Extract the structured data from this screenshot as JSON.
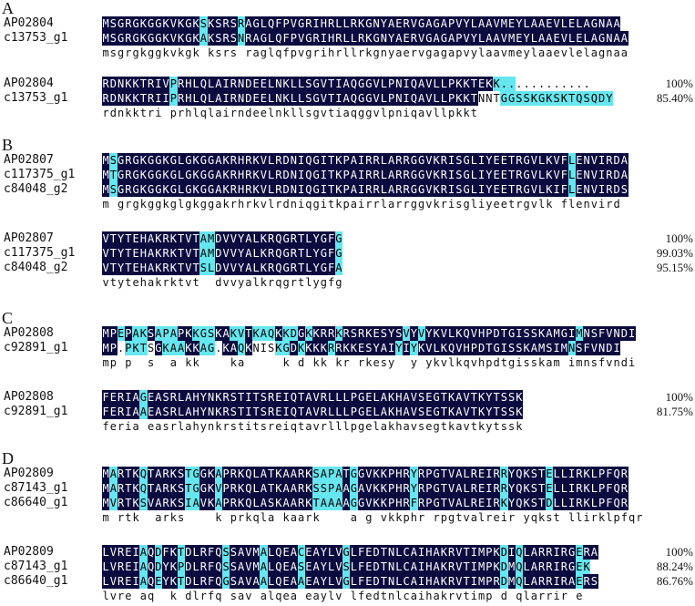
{
  "colors": {
    "identical": "#0b0b3f",
    "similar": "#66e6ee"
  },
  "panels": [
    {
      "label": "A",
      "blocks": [
        {
          "rows": [
            {
              "name": "AP02804",
              "seq": "MSGRGKGGKVKGKSKSRSRAGLQFPVGRIHRLLRKGNYAERVGAGAPVYLAAVMEYLAAEVLELAGNAA",
              "mask": "DDDDDDDDDDDDDCDDDDCDDDDDDDDDDDDDDDDDDDDDDDDDDDDDDDDDDDDDDDDDDDDDDDDDD"
            },
            {
              "name": "c13753_g1",
              "seq": "MSGRGKGGKVKGKAKSRSNRAGLQFPVGRIHRLLRKGNYAERVGAGAPVYLAAVMEYLAAEVLELAGNAA",
              "mask": "DDDDDDDDDDDDDCDDDDCDDDDDDDDDDDDDDDDDDDDDDDDDDDDDDDDDDDDDDDDDDDDDDDDDDD"
            }
          ],
          "consensus": "msgrgkggkvkgk ksrs raglqfpvgrihrllrkgnyaervgagapvylaavmeylaaevlelagnaa"
        },
        {
          "rows": [
            {
              "name": "AP02804",
              "seq": "RDNKKTRIVPRHLQLAIRNDEELNKLLSGVTIAQGGVLPNIQAVLLPKKTEKK............",
              "mask": "DDDDDDDDDCDDDDDDDDDDDDDDDDDDDDDDDDDDDDDDDDDDDDDDDDDDCCC............",
              "pct": "100%"
            },
            {
              "name": "c13753_g1",
              "seq": "RDNKKTRIIPRHLQLAIRNDEELNKLLSGVTIAQGGVLPNIQAVLLPKKTNNTGGSSKGKSKTQSQDY",
              "mask": "DDDDDDDDDCDDDDDDDDDDDDDDDDDDDDDDDDDDDDDDDDDDDDDDDDNNNCCCCCCCCCCCCCCC",
              "pct": "85.40%"
            }
          ],
          "consensus": "rdnkktri prhlqlairndeelnkllsgvtiaqggvlpniqavllpkkt"
        }
      ]
    },
    {
      "label": "B",
      "blocks": [
        {
          "rows": [
            {
              "name": "AP02807",
              "seq": "MSGRGKGGKGLGKGGAKRHRKVLRDNIQGITKPAIRRLARRGGVKRISGLIYEETRGVLKVFLENVIRDA",
              "mask": "DCDDDDDDDDDDDDDDDDDDDDDDDDDDDDDDDDDDDDDDDDDDDDDDDDDDDDDDDDDDDDCDDDDDDDC"
            },
            {
              "name": "c117375_g1",
              "seq": "MTGRGKGGKGLGKGGAKRHRKVLRDNIQGITKPAIRRLARRGGVKRISGLIYEETRGVLKVFLENVIRDA",
              "mask": "DCDDDDDDDDDDDDDDDDDDDDDDDDDDDDDDDDDDDDDDDDDDDDDDDDDDDDDDDDDDDDCDDDDDDDC"
            },
            {
              "name": "c84048_g2",
              "seq": "MSGRGKGGKGLGKGGAKRHRKVLRDNIQGITKPAIRRLARRGGVKRISGLIYEETRGVLKIFLENVIRDS",
              "mask": "DCDDDDDDDDDDDDDDDDDDDDDDDDDDDDDDDDDDDDDDDDDDDDDDDDDDDDDDDDDDDDCDDDDDDDN"
            }
          ],
          "consensus": "m grgkggkglgkggakrhrkvlrdniqgitkpairrlarrggvkrisgliyeetrgvlk flenvird"
        },
        {
          "rows": [
            {
              "name": "AP02807",
              "seq": "VTYTEHAKRKTVTAMDVVYALKRQGRTLYGFG",
              "mask": "DDDDDDDDDDDDDCCDDDDDDDDDDDDDDDDC",
              "pct": "100%"
            },
            {
              "name": "c117375_g1",
              "seq": "VTYTEHAKRKTVTAMDVVYALKRQGRTLYGFG",
              "mask": "DDDDDDDDDDDDDCCDDDDDDDDDDDDDDDDC",
              "pct": "99.03%"
            },
            {
              "name": "c84048_g2",
              "seq": "VTYTEHAKRKTVTSLDVVYALKRQGRTLYGFA",
              "mask": "DDDDDDDDDDDDDCCDDDDDDDDDDDDDDDDC",
              "pct": "95.15%"
            }
          ],
          "consensus": "vtytehakrktvt  dvvyalkrqgrtlygfg"
        }
      ]
    },
    {
      "label": "C",
      "blocks": [
        {
          "rows": [
            {
              "name": "AP02808",
              "seq": "MPEPAKSAPAPKKGSKAKVTKAQKKDGKKRRKRSRKESYSVYVYKVLKQVHPDTGISSKAMGIMNSFVNDI",
              "mask": "DDCDCCDCCCDDCCCDDCCDCCCDCCDCDDDCDDDDDDDDCDCDDDDDDDDDDDDDDDDDDDDCDDDDDDDD"
            },
            {
              "name": "c92891_g1",
              "seq": "MP.PKTSGKAAKKAG.KAQKNISKGDKKKKRRKKESYAIYIYKVLKQVHPDTGISSKAMSIMNSFVNDI",
              "mask": "DDNCCCNDCCCDDCCNDDCDNNNCCDCDDDCDDDDDDDDCDCDDDDDDDDDDDDDDDDDDDDCDDDDDDDD"
            }
          ],
          "consensus": "mp p  s  a kk    ka     k d kk kr rkesy  y ykvlkqvhpdtgisskam imnsfvndi"
        },
        {
          "rows": [
            {
              "name": "AP02808",
              "seq": "FERIAGEASRLAHYNKRSTITSREIQTAVRLLLPGELAKHAVSEGTKAVTKYTSSK",
              "mask": "DDDDDCDDDDDDDDDDDDDDDDDDDDDDDDDDDDDDDDDDDDDDDDDDDDDDDDDD",
              "pct": "100%"
            },
            {
              "name": "c92891_g1",
              "seq": "FERIAAEASRLAHYNKRSTITSREIQTAVRLLLPGELAKHAVSEGTKAVTKYTSSK",
              "mask": "DDDDDCDDDDDDDDDDDDDDDDDDDDDDDDDDDDDDDDDDDDDDDDDDDDDDDDDD",
              "pct": "81.75%"
            }
          ],
          "consensus": "feria easrlahynkrstitsreiqtavrlllpgelakhavsegtkavtkytssk"
        }
      ]
    },
    {
      "label": "D",
      "blocks": [
        {
          "rows": [
            {
              "name": "AP02809",
              "seq": "MARTKQTARKSTGGKAPRKQLATKAARKSAPATGGVKKPHRYRPGTVALREIRRYQKSTELLIRKLPFQR",
              "mask": "DCDDDCDDDDDCCDDCDDDDDDDDDDDDCCCCDCDDDDDDDCDDDDDDDDDDDCDDDDDCDDDDDDDDDD"
            },
            {
              "name": "c87143_g1",
              "seq": "MARTKQTARKSTGGKVPRKQLATKAARKSSPAAGAVKKPHRYRPGTVALREIRRYQKSTELLIRKLPFQR",
              "mask": "DCDDDCDDDDDCCDDCDDDDDDDDDDDDCCCCDCDDDDDDDCDDDDDDDDDDDCDDDDDCDDDDDDDDDD"
            },
            {
              "name": "c86640_g1",
              "seq": "MVRTKSVARKSIAVKAPRKQLASKAARKTAAAAGGVKKPHRFRPGTVALREIRKYQKSTDLLIRKLPFQR",
              "mask": "DCDDDCDDDDDCCDDCDDDDDDDDDDDDCCCCDCDDDDDDDCDDDDDDDDDDDCDDDDDCDDDDDDDDDD"
            }
          ],
          "consensus": "m rtk  arks    k prkqla kaark    a g vkkphr rpgtvalreir yqkst llirklpfqr"
        },
        {
          "rows": [
            {
              "name": "AP02809",
              "seq": "LVREIAQDFKTDLRFQSSAVMALQEACEAYLVGLFEDTNLCAIHAKRVTIMPKDIQLARRIRGERA",
              "mask": "DDDDDCDCDDCDDDDDCDDDDCDDDDCDDDDDCDDDDDDDDDDDDDDDDDDDDCDCDDDDDDDCDDD",
              "pct": "100%"
            },
            {
              "name": "c87143_g1",
              "seq": "LVREIAQDYKPDLRFQSSAVMALQEASEAYLVSLFEDTNLCAIHAKRVTIMPKDMQLARRIRGEK",
              "mask": "DDDDDCDCDDCDDDDDCDDDDCDDDDCDDDDDCDDDDDDDDDDDDDDDDDDDDCDCDDDDDDDCC",
              "pct": "88.24%"
            },
            {
              "name": "c86640_g1",
              "seq": "LVREIAQEYKTDLRFQGSAVAALQEAAEAYLVGLFEDTNLCAIHAKRVTIMPRDMQLARRIRAERS",
              "mask": "DDDDDCDCDDCDDDDDCDDDDCDDDDCDDDDDCDDDDDDDDDDDDDDDDDDDDCDCDDDDDDDCDDN",
              "pct": "86.76%"
            }
          ],
          "consensus": "lvre aq  k dlrfq sav alqea eaylv lfedtnlcaihakrvtimp d qlarrir e"
        }
      ]
    }
  ]
}
